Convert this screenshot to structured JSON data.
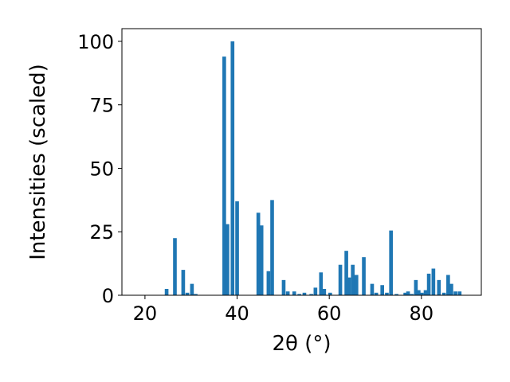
{
  "chart_data": {
    "type": "bar",
    "xlabel": "2θ (°)",
    "ylabel": "Intensities (scaled)",
    "xlim": [
      15,
      93
    ],
    "ylim": [
      0,
      105
    ],
    "xticks": [
      "20",
      "40",
      "60",
      "80"
    ],
    "yticks": [
      "0",
      "25",
      "50",
      "75",
      "100"
    ],
    "bar_color": "#1f77b4",
    "bar_width": 0.8,
    "x": [
      24.7,
      26.5,
      28.3,
      29.2,
      30.2,
      31.0,
      37.2,
      37.9,
      39.0,
      40.0,
      44.6,
      45.3,
      46.8,
      47.6,
      50.1,
      51.0,
      52.4,
      53.5,
      54.6,
      56.1,
      57.0,
      58.2,
      58.9,
      60.2,
      62.4,
      63.7,
      64.3,
      65.1,
      65.9,
      67.5,
      69.3,
      70.2,
      71.5,
      72.5,
      73.4,
      74.6,
      76.5,
      77.1,
      77.9,
      78.8,
      79.4,
      80.1,
      80.9,
      81.6,
      82.6,
      83.8,
      84.9,
      85.8,
      86.5,
      87.4,
      88.3
    ],
    "values": [
      2.5,
      22.5,
      10,
      1,
      4.5,
      0.5,
      94,
      28,
      100,
      37,
      32.5,
      27.5,
      9.5,
      37.5,
      6,
      1.5,
      1.5,
      0.5,
      1,
      0.5,
      3,
      9,
      2.5,
      1,
      12,
      17.5,
      7,
      12,
      8,
      15,
      4.5,
      1,
      4,
      1,
      25.5,
      0.5,
      1,
      1.5,
      0.5,
      6,
      2,
      1,
      2,
      8.5,
      10.5,
      6,
      1,
      8,
      4.5,
      1.5,
      1.5
    ]
  }
}
